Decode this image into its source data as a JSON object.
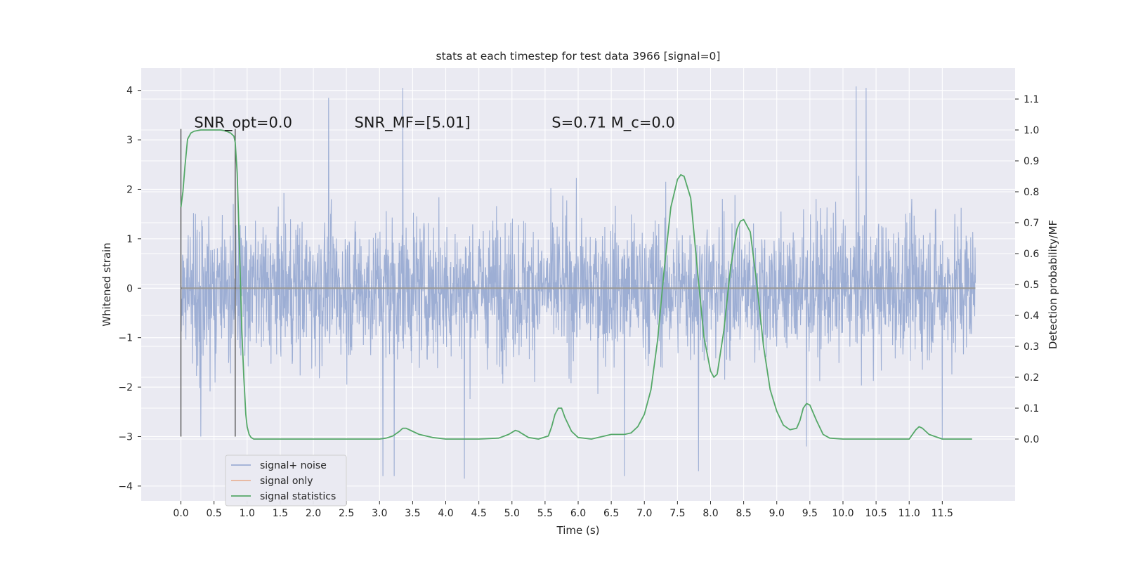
{
  "chart_data": {
    "type": "line",
    "title": "stats at each timestep for test data 3966 [signal=0]",
    "xlabel": "Time (s)",
    "ylabel": "Whitened strain",
    "ylabel_right": "Detection probability/MF",
    "xlim": [
      -0.6,
      12.6
    ],
    "ylim": [
      -4.3,
      4.45
    ],
    "ylim_right": [
      -0.2,
      1.2
    ],
    "x_ticks": [
      0.0,
      0.5,
      1.0,
      1.5,
      2.0,
      2.5,
      3.0,
      3.5,
      4.0,
      4.5,
      5.0,
      5.5,
      6.0,
      6.5,
      7.0,
      7.5,
      8.0,
      8.5,
      9.0,
      9.5,
      10.0,
      10.5,
      11.0,
      11.5
    ],
    "x_tick_labels": [
      "0.0",
      "0.5",
      "1.0",
      "1.5",
      "2.0",
      "2.5",
      "3.0",
      "3.5",
      "4.0",
      "4.5",
      "5.0",
      "5.5",
      "6.0",
      "6.5",
      "7.0",
      "7.5",
      "8.0",
      "8.5",
      "9.0",
      "9.5",
      "10.0",
      "10.5",
      "11.0",
      "11.5"
    ],
    "y_ticks": [
      -4,
      -3,
      -2,
      -1,
      0,
      1,
      2,
      3,
      4
    ],
    "y_tick_labels": [
      "−4",
      "−3",
      "−2",
      "−1",
      "0",
      "1",
      "2",
      "3",
      "4"
    ],
    "y_ticks_right": [
      0.0,
      0.1,
      0.2,
      0.3,
      0.4,
      0.5,
      0.6,
      0.7,
      0.8,
      0.9,
      1.0,
      1.1
    ],
    "y_tick_labels_right": [
      "0.0",
      "0.1",
      "0.2",
      "0.3",
      "0.4",
      "0.5",
      "0.6",
      "0.7",
      "0.8",
      "0.9",
      "1.0",
      "1.1"
    ],
    "grid": true,
    "legend_position": "lower-left",
    "annotations": [
      {
        "text": "SNR_opt=0.0",
        "x": 0.2,
        "y": 3.25
      },
      {
        "text": "SNR_MF=[5.01]",
        "x": 2.62,
        "y": 3.25
      },
      {
        "text": "S=0.71   M_c=0.0",
        "x": 5.6,
        "y": 3.25
      }
    ],
    "markers": [
      {
        "x": 0.0,
        "y_min": -3.0,
        "y_max": 3.22
      },
      {
        "x": 0.82,
        "y_min": -3.0,
        "y_max": 3.22
      }
    ],
    "series": [
      {
        "name": "signal+ noise",
        "axis": "left",
        "color": "#8fa3cf",
        "x_range": [
          0.0,
          12.0
        ],
        "typical_amplitude": 1.35,
        "notable_peaks": [
          {
            "x": 2.23,
            "y": 3.85
          },
          {
            "x": 3.35,
            "y": 4.05
          },
          {
            "x": 10.2,
            "y": 4.08
          },
          {
            "x": 10.35,
            "y": 4.05
          },
          {
            "x": 3.05,
            "y": -3.8
          },
          {
            "x": 3.22,
            "y": -3.8
          },
          {
            "x": 4.28,
            "y": -3.85
          },
          {
            "x": 6.7,
            "y": -3.8
          },
          {
            "x": 7.82,
            "y": -3.7
          },
          {
            "x": 9.45,
            "y": -3.2
          },
          {
            "x": 0.3,
            "y": -3.0
          },
          {
            "x": 11.5,
            "y": -3.05
          }
        ]
      },
      {
        "name": "signal only",
        "axis": "left",
        "color": "#dd8452",
        "x": [
          0.0,
          12.0
        ],
        "y": [
          0.0,
          0.0
        ]
      },
      {
        "name": "signal statistics",
        "axis": "right",
        "color": "#55a868",
        "x": [
          0.0,
          0.03,
          0.06,
          0.1,
          0.15,
          0.2,
          0.3,
          0.4,
          0.5,
          0.6,
          0.65,
          0.7,
          0.75,
          0.8,
          0.82,
          0.85,
          0.88,
          0.9,
          0.92,
          0.95,
          0.98,
          1.0,
          1.03,
          1.06,
          1.1,
          1.2,
          1.5,
          2.0,
          2.5,
          3.0,
          3.1,
          3.2,
          3.3,
          3.35,
          3.4,
          3.5,
          3.6,
          3.8,
          4.0,
          4.5,
          4.8,
          4.95,
          5.05,
          5.1,
          5.15,
          5.25,
          5.4,
          5.55,
          5.6,
          5.65,
          5.7,
          5.75,
          5.8,
          5.9,
          6.0,
          6.2,
          6.4,
          6.5,
          6.7,
          6.8,
          6.9,
          7.0,
          7.1,
          7.2,
          7.3,
          7.4,
          7.5,
          7.55,
          7.6,
          7.7,
          7.8,
          7.9,
          8.0,
          8.05,
          8.1,
          8.2,
          8.3,
          8.4,
          8.45,
          8.5,
          8.6,
          8.7,
          8.8,
          8.9,
          9.0,
          9.1,
          9.2,
          9.3,
          9.35,
          9.4,
          9.45,
          9.5,
          9.6,
          9.7,
          9.8,
          10.0,
          10.5,
          11.0,
          11.1,
          11.15,
          11.2,
          11.3,
          11.5,
          11.95
        ],
        "y": [
          0.75,
          0.8,
          0.88,
          0.97,
          0.99,
          0.996,
          1.0,
          1.0,
          1.0,
          1.0,
          0.998,
          0.995,
          0.99,
          0.98,
          0.96,
          0.86,
          0.65,
          0.5,
          0.35,
          0.2,
          0.08,
          0.04,
          0.015,
          0.005,
          0.0,
          0.0,
          0.0,
          0.0,
          0.0,
          0.0,
          0.003,
          0.01,
          0.025,
          0.035,
          0.035,
          0.025,
          0.015,
          0.005,
          0.0,
          0.0,
          0.003,
          0.015,
          0.028,
          0.025,
          0.018,
          0.005,
          0.0,
          0.01,
          0.04,
          0.08,
          0.1,
          0.1,
          0.07,
          0.025,
          0.005,
          0.0,
          0.01,
          0.015,
          0.015,
          0.02,
          0.04,
          0.08,
          0.16,
          0.32,
          0.55,
          0.75,
          0.84,
          0.855,
          0.85,
          0.78,
          0.55,
          0.33,
          0.22,
          0.2,
          0.21,
          0.35,
          0.55,
          0.68,
          0.705,
          0.71,
          0.67,
          0.5,
          0.3,
          0.16,
          0.09,
          0.045,
          0.03,
          0.035,
          0.06,
          0.1,
          0.115,
          0.11,
          0.06,
          0.015,
          0.003,
          0.0,
          0.0,
          0.0,
          0.03,
          0.04,
          0.035,
          0.015,
          0.0,
          0.0
        ]
      }
    ]
  }
}
